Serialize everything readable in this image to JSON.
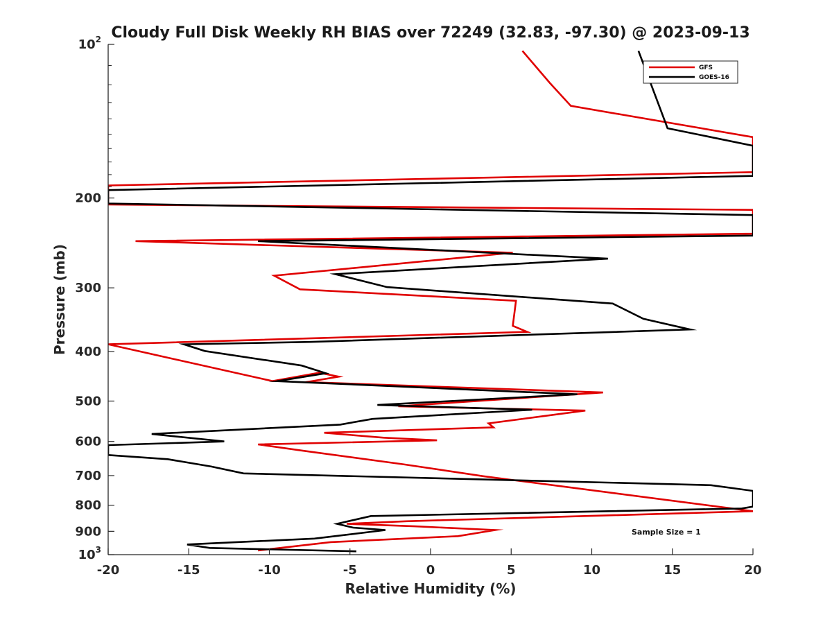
{
  "chart_data": {
    "type": "line",
    "title": "Cloudy Full Disk Weekly RH BIAS over 72249 (32.83, -97.30) @ 2023-09-13",
    "xlabel": "Relative Humidity (%)",
    "ylabel": "Pressure (mb)",
    "xlim": [
      -20,
      20
    ],
    "ylim": [
      100,
      1000
    ],
    "y_scale": "log",
    "y_reversed": true,
    "xticks": [
      "-20",
      "-15",
      "-10",
      "-5",
      "0",
      "5",
      "10",
      "15",
      "20"
    ],
    "yticks": [
      {
        "label": "",
        "base": "10",
        "exp": "2"
      },
      {
        "label": "200"
      },
      {
        "label": "300"
      },
      {
        "label": "400"
      },
      {
        "label": "500"
      },
      {
        "label": "600"
      },
      {
        "label": "700"
      },
      {
        "label": "800"
      },
      {
        "label": "900"
      },
      {
        "label": "",
        "base": "10",
        "exp": "3"
      }
    ],
    "grid": false,
    "legend_position": "top-right",
    "annotation": "Sample Size = 1",
    "series": [
      {
        "name": "GFS",
        "color": "#e00000",
        "points": [
          [
            -10.7,
            981
          ],
          [
            -6.2,
            945
          ],
          [
            1.7,
            920
          ],
          [
            4,
            895
          ],
          [
            -1,
            880
          ],
          [
            -5.2,
            870
          ],
          [
            -1.5,
            860
          ],
          [
            20,
            822
          ],
          [
            3.3,
            702
          ],
          [
            -1.7,
            665
          ],
          [
            -8,
            625
          ],
          [
            -10.7,
            608
          ],
          [
            0.4,
            597
          ],
          [
            -2.9,
            590
          ],
          [
            -6.6,
            577
          ],
          [
            3.9,
            563
          ],
          [
            3.6,
            553
          ],
          [
            9.6,
            522
          ],
          [
            -2,
            512
          ],
          [
            10.7,
            481
          ],
          [
            -7.7,
            459
          ],
          [
            -5.7,
            448
          ],
          [
            -6.9,
            440
          ],
          [
            -9.8,
            457
          ],
          [
            -20,
            387
          ],
          [
            6,
            366
          ],
          [
            5.1,
            356
          ],
          [
            5.3,
            318
          ],
          [
            -8.1,
            302
          ],
          [
            -9.7,
            284
          ],
          [
            5.1,
            256
          ],
          [
            -18.3,
            243
          ],
          [
            20,
            235
          ],
          [
            20,
            211
          ],
          [
            -20,
            206
          ],
          [
            -20,
            189
          ],
          [
            20,
            178
          ],
          [
            20,
            152
          ],
          [
            8.7,
            132
          ],
          [
            7.4,
            119
          ],
          [
            5.7,
            103
          ]
        ]
      },
      {
        "name": "GOES-16",
        "color": "#000000",
        "points": [
          [
            -4.6,
            985
          ],
          [
            -13.7,
            970
          ],
          [
            -15.1,
            955
          ],
          [
            -7.2,
            930
          ],
          [
            -2.8,
            895
          ],
          [
            -4.8,
            885
          ],
          [
            -5.8,
            870
          ],
          [
            -3.7,
            840
          ],
          [
            19.3,
            812
          ],
          [
            20,
            805
          ],
          [
            20,
            750
          ],
          [
            17.4,
            731
          ],
          [
            -11.6,
            693
          ],
          [
            -13.6,
            672
          ],
          [
            -16.3,
            650
          ],
          [
            -20,
            638
          ],
          [
            -20,
            610
          ],
          [
            -12.8,
            600
          ],
          [
            -17.3,
            580
          ],
          [
            -5.6,
            556
          ],
          [
            -3.6,
            542
          ],
          [
            6.3,
            520
          ],
          [
            -3.3,
            509
          ],
          [
            9.1,
            485
          ],
          [
            -9.5,
            457
          ],
          [
            -6.5,
            441
          ],
          [
            -8,
            426
          ],
          [
            -14,
            399
          ],
          [
            -15.3,
            387
          ],
          [
            -7.5,
            383
          ],
          [
            16.1,
            362
          ],
          [
            13.2,
            345
          ],
          [
            11.3,
            322
          ],
          [
            -2.7,
            299
          ],
          [
            -5.9,
            282
          ],
          [
            11,
            263
          ],
          [
            -10.7,
            243
          ],
          [
            20,
            237
          ],
          [
            20,
            216
          ],
          [
            -20,
            205
          ],
          [
            -20,
            193
          ],
          [
            20,
            181
          ],
          [
            20,
            158
          ],
          [
            14.7,
            146
          ],
          [
            12.9,
            103
          ]
        ]
      }
    ]
  }
}
